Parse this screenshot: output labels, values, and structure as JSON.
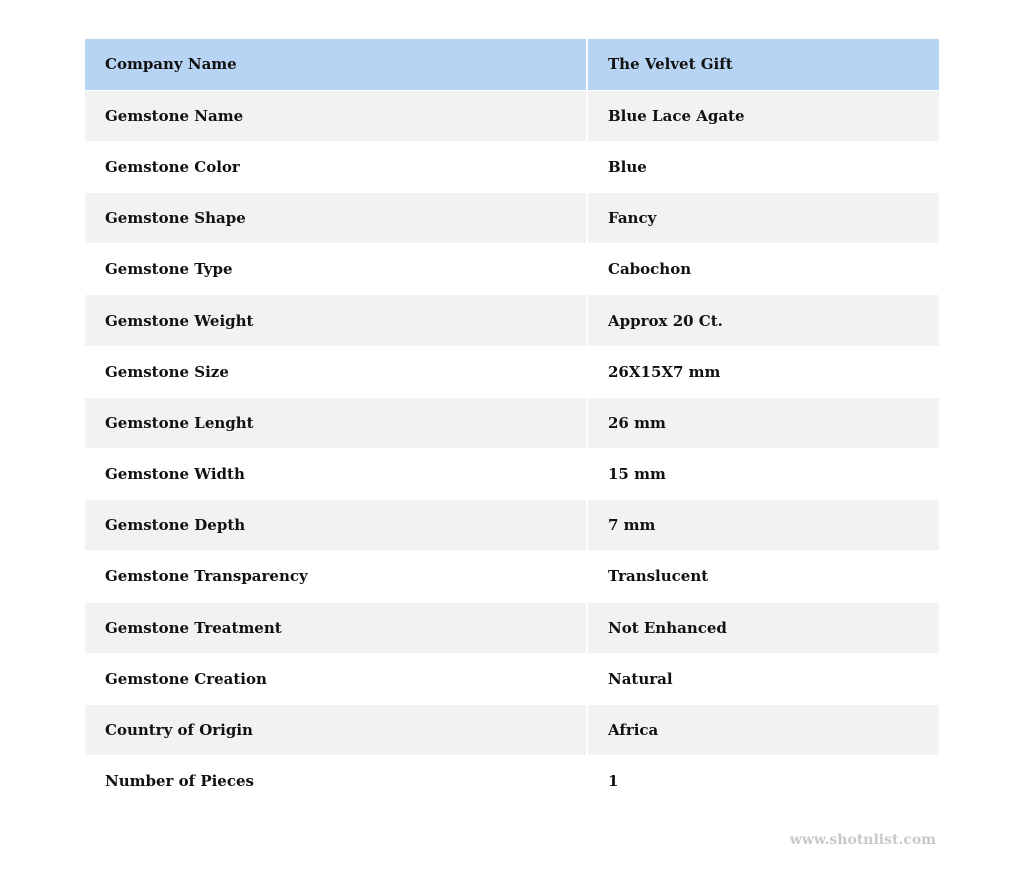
{
  "colors": {
    "header": "#b8d4f4",
    "stripe": "#f2f2f2"
  },
  "rows": [
    {
      "label": "Company Name",
      "value": "The Velvet Gift"
    },
    {
      "label": "Gemstone Name",
      "value": "Blue Lace Agate"
    },
    {
      "label": "Gemstone Color",
      "value": "Blue"
    },
    {
      "label": "Gemstone Shape",
      "value": "Fancy"
    },
    {
      "label": "Gemstone Type",
      "value": "Cabochon"
    },
    {
      "label": "Gemstone Weight",
      "value": "Approx 20 Ct."
    },
    {
      "label": "Gemstone Size",
      "value": "26X15X7 mm"
    },
    {
      "label": "Gemstone Lenght",
      "value": "26 mm"
    },
    {
      "label": "Gemstone Width",
      "value": "15 mm"
    },
    {
      "label": "Gemstone Depth",
      "value": "7 mm"
    },
    {
      "label": "Gemstone Transparency",
      "value": "Translucent"
    },
    {
      "label": "Gemstone Treatment",
      "value": "Not Enhanced"
    },
    {
      "label": "Gemstone Creation",
      "value": "Natural"
    },
    {
      "label": "Country of Origin",
      "value": "Africa"
    },
    {
      "label": "Number of Pieces",
      "value": "1"
    }
  ],
  "watermark": "www.shotnlist.com"
}
